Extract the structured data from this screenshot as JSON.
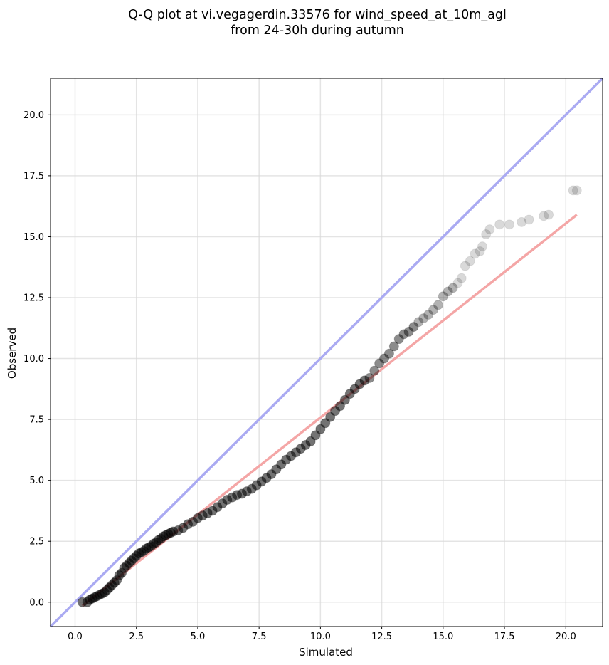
{
  "chart_data": {
    "type": "scatter",
    "title": "Q-Q plot at vi.vegagerdin.33576 for wind_speed_at_10m_agl",
    "subtitle": "from 24-30h during autumn",
    "xlabel": "Simulated",
    "ylabel": "Observed",
    "xlim": [
      -1.0,
      21.5
    ],
    "ylim": [
      -1.0,
      21.5
    ],
    "xticks": [
      "0.0",
      "2.5",
      "5.0",
      "7.5",
      "10.0",
      "12.5",
      "15.0",
      "17.5",
      "20.0"
    ],
    "yticks": [
      "0.0",
      "2.5",
      "5.0",
      "7.5",
      "10.0",
      "12.5",
      "15.0",
      "17.5",
      "20.0"
    ],
    "grid": true,
    "points": [
      [
        0.3,
        0.0
      ],
      [
        0.5,
        0.0
      ],
      [
        0.6,
        0.1
      ],
      [
        0.7,
        0.15
      ],
      [
        0.8,
        0.2
      ],
      [
        0.9,
        0.25
      ],
      [
        1.0,
        0.3
      ],
      [
        1.1,
        0.35
      ],
      [
        1.2,
        0.4
      ],
      [
        1.3,
        0.5
      ],
      [
        1.4,
        0.6
      ],
      [
        1.5,
        0.7
      ],
      [
        1.6,
        0.8
      ],
      [
        1.7,
        0.9
      ],
      [
        1.8,
        1.1
      ],
      [
        1.9,
        1.2
      ],
      [
        2.0,
        1.4
      ],
      [
        2.1,
        1.5
      ],
      [
        2.2,
        1.6
      ],
      [
        2.3,
        1.7
      ],
      [
        2.4,
        1.8
      ],
      [
        2.5,
        1.9
      ],
      [
        2.6,
        2.0
      ],
      [
        2.7,
        2.05
      ],
      [
        2.8,
        2.1
      ],
      [
        2.9,
        2.2
      ],
      [
        3.0,
        2.25
      ],
      [
        3.1,
        2.3
      ],
      [
        3.2,
        2.4
      ],
      [
        3.3,
        2.45
      ],
      [
        3.4,
        2.55
      ],
      [
        3.5,
        2.6
      ],
      [
        3.6,
        2.7
      ],
      [
        3.7,
        2.75
      ],
      [
        3.8,
        2.8
      ],
      [
        3.9,
        2.85
      ],
      [
        4.0,
        2.9
      ],
      [
        4.2,
        2.95
      ],
      [
        4.4,
        3.05
      ],
      [
        4.6,
        3.2
      ],
      [
        4.8,
        3.3
      ],
      [
        5.0,
        3.45
      ],
      [
        5.2,
        3.55
      ],
      [
        5.4,
        3.65
      ],
      [
        5.6,
        3.75
      ],
      [
        5.8,
        3.9
      ],
      [
        6.0,
        4.05
      ],
      [
        6.2,
        4.2
      ],
      [
        6.4,
        4.3
      ],
      [
        6.6,
        4.4
      ],
      [
        6.8,
        4.45
      ],
      [
        7.0,
        4.55
      ],
      [
        7.2,
        4.65
      ],
      [
        7.4,
        4.8
      ],
      [
        7.6,
        4.95
      ],
      [
        7.8,
        5.1
      ],
      [
        8.0,
        5.25
      ],
      [
        8.2,
        5.45
      ],
      [
        8.4,
        5.65
      ],
      [
        8.6,
        5.85
      ],
      [
        8.8,
        6.0
      ],
      [
        9.0,
        6.15
      ],
      [
        9.2,
        6.3
      ],
      [
        9.4,
        6.45
      ],
      [
        9.6,
        6.6
      ],
      [
        9.8,
        6.85
      ],
      [
        10.0,
        7.1
      ],
      [
        10.2,
        7.35
      ],
      [
        10.4,
        7.6
      ],
      [
        10.6,
        7.85
      ],
      [
        10.8,
        8.05
      ],
      [
        11.0,
        8.3
      ],
      [
        11.2,
        8.55
      ],
      [
        11.4,
        8.75
      ],
      [
        11.6,
        8.95
      ],
      [
        11.8,
        9.1
      ],
      [
        12.0,
        9.2
      ],
      [
        12.2,
        9.5
      ],
      [
        12.4,
        9.8
      ],
      [
        12.6,
        10.0
      ],
      [
        12.8,
        10.2
      ],
      [
        13.0,
        10.5
      ],
      [
        13.2,
        10.8
      ],
      [
        13.4,
        11.0
      ],
      [
        13.6,
        11.1
      ],
      [
        13.8,
        11.3
      ],
      [
        14.0,
        11.5
      ],
      [
        14.2,
        11.65
      ],
      [
        14.4,
        11.8
      ],
      [
        14.6,
        12.0
      ],
      [
        14.8,
        12.2
      ],
      [
        15.0,
        12.55
      ],
      [
        15.2,
        12.75
      ],
      [
        15.4,
        12.9
      ],
      [
        15.6,
        13.1
      ],
      [
        15.75,
        13.3
      ],
      [
        15.9,
        13.8
      ],
      [
        16.1,
        14.0
      ],
      [
        16.3,
        14.3
      ],
      [
        16.5,
        14.4
      ],
      [
        16.6,
        14.6
      ],
      [
        16.75,
        15.1
      ],
      [
        16.9,
        15.3
      ],
      [
        17.3,
        15.5
      ],
      [
        17.7,
        15.5
      ],
      [
        18.2,
        15.6
      ],
      [
        18.5,
        15.7
      ],
      [
        19.1,
        15.85
      ],
      [
        19.3,
        15.9
      ],
      [
        20.3,
        16.9
      ],
      [
        20.45,
        16.9
      ]
    ],
    "reference_line": {
      "name": "y = x",
      "color": "#aaaaf2",
      "from": [
        -1.0,
        -1.0
      ],
      "to": [
        21.5,
        21.5
      ]
    },
    "fit_line": {
      "color": "#f4a6a6",
      "from": [
        0.3,
        -0.15
      ],
      "to": [
        20.45,
        15.9
      ]
    },
    "point_color": "#000000"
  }
}
